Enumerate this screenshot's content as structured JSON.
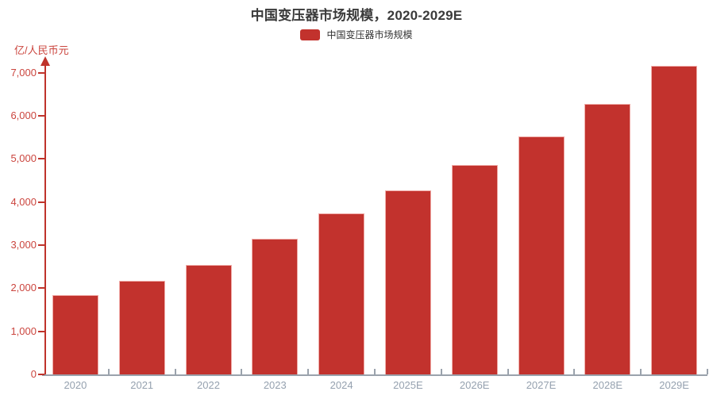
{
  "title": "中国变压器市场规模，2020-2029E",
  "legend": {
    "label": "中国变压器市场规模",
    "swatch_color": "#c2322d"
  },
  "y_axis": {
    "unit_label": "亿/人民币元"
  },
  "colors": {
    "bar": "#c2322d",
    "y_axis_line": "#bf332b",
    "y_tick_text": "#cb453e",
    "x_axis_line": "#9aa2ac",
    "x_label_text": "#95a1af",
    "title_text": "#3a3a3a"
  },
  "chart_data": {
    "type": "bar",
    "title": "中国变压器市场规模，2020-2029E",
    "xlabel": "",
    "ylabel": "亿/人民币元",
    "categories": [
      "2020",
      "2021",
      "2022",
      "2023",
      "2024",
      "2025E",
      "2026E",
      "2027E",
      "2028E",
      "2029E"
    ],
    "series": [
      {
        "name": "中国变压器市场规模",
        "values": [
          1840,
          2170,
          2540,
          3150,
          3730,
          4270,
          4860,
          5520,
          6270,
          7160
        ]
      }
    ],
    "ylim": [
      0,
      7000
    ],
    "yticks": [
      {
        "value": 0,
        "label": "0"
      },
      {
        "value": 1000,
        "label": "1,000"
      },
      {
        "value": 2000,
        "label": "2,000"
      },
      {
        "value": 3000,
        "label": "3,000"
      },
      {
        "value": 4000,
        "label": "4,000"
      },
      {
        "value": 5000,
        "label": "5,000"
      },
      {
        "value": 6000,
        "label": "6,000"
      },
      {
        "value": 7000,
        "label": "7,000"
      }
    ],
    "grid": false,
    "legend_position": "top",
    "bar_color": "#c2322d"
  }
}
